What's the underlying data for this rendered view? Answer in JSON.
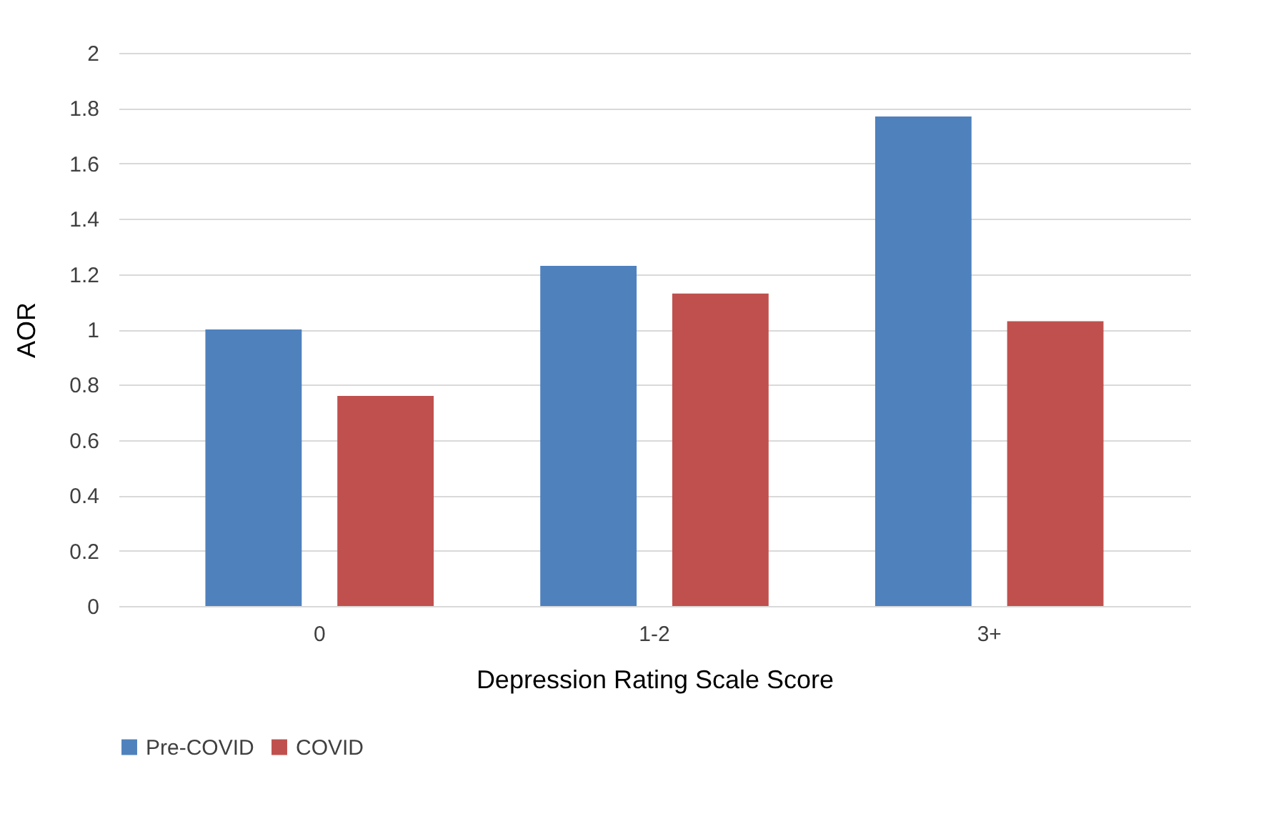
{
  "chart_data": {
    "type": "bar",
    "xlabel": "Depression Rating Scale Score",
    "ylabel": "AOR",
    "categories": [
      "0",
      "1-2",
      "3+"
    ],
    "series": [
      {
        "name": "Pre-COVID",
        "color": "#4f81bd",
        "values": [
          1.0,
          1.23,
          1.77
        ]
      },
      {
        "name": "COVID",
        "color": "#c0504d",
        "values": [
          0.76,
          1.13,
          1.03
        ]
      }
    ],
    "ylim": [
      0,
      2
    ],
    "yticks": [
      0,
      0.2,
      0.4,
      0.6,
      0.8,
      1,
      1.2,
      1.4,
      1.6,
      1.8,
      2
    ],
    "grid": "y",
    "legend": "bottom"
  }
}
